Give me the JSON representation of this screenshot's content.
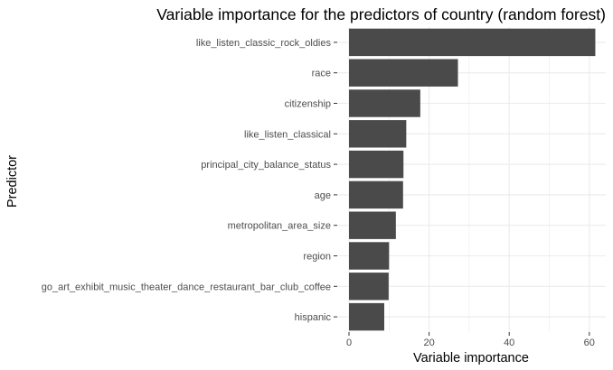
{
  "chart_data": {
    "type": "bar",
    "orientation": "horizontal",
    "title": "Variable importance for the predictors of country (random forest)",
    "xlabel": "Variable importance",
    "ylabel": "Predictor",
    "xlim": [
      0,
      64
    ],
    "xticks": [
      0,
      20,
      40,
      60
    ],
    "grid": true,
    "legend": "none",
    "bar_color": "#4a4a4a",
    "grid_color": "#ebebeb",
    "categories": [
      "like_listen_classic_rock_oldies",
      "race",
      "citizenship",
      "like_listen_classical",
      "principal_city_balance_status",
      "age",
      "metropolitan_area_size",
      "region",
      "go_art_exhibit_music_theater_dance_restaurant_bar_club_coffee",
      "hispanic"
    ],
    "values": [
      61.5,
      27.2,
      17.8,
      14.3,
      13.6,
      13.5,
      11.7,
      10.0,
      9.9,
      8.8
    ]
  }
}
